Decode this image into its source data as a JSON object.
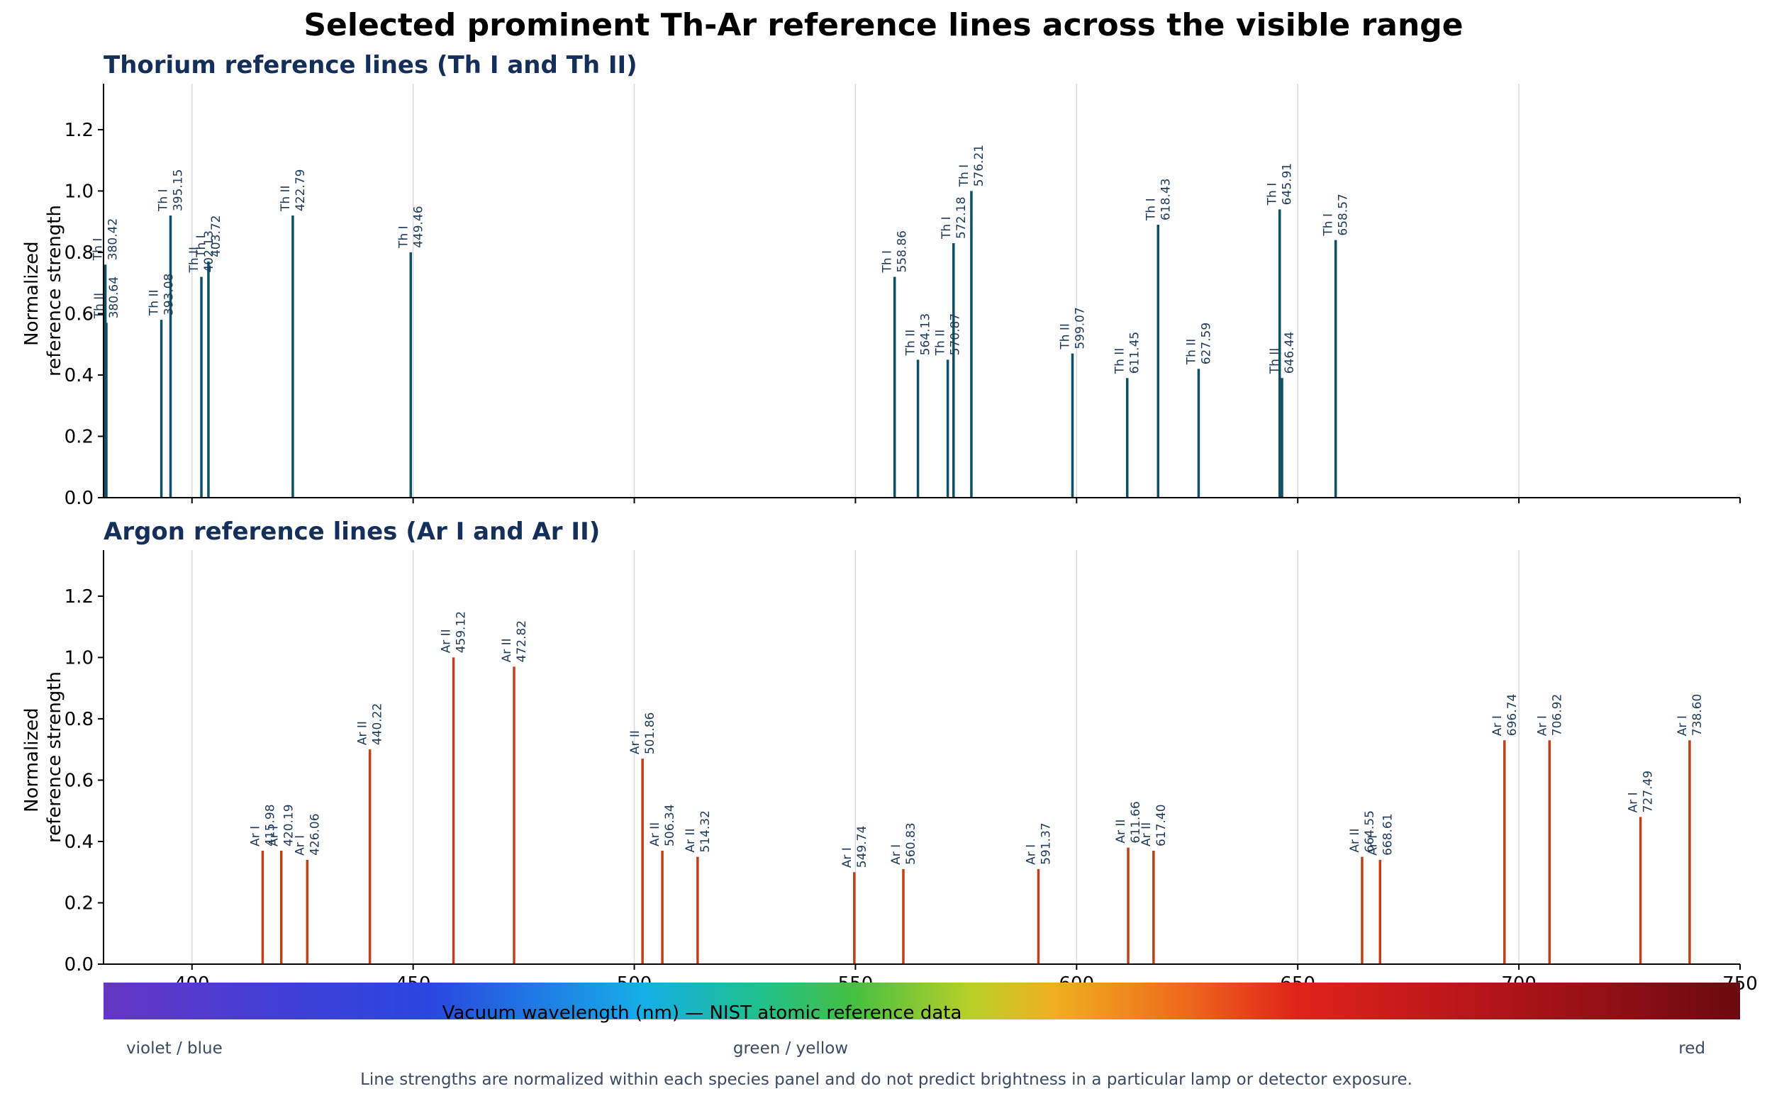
{
  "title": "Selected prominent Th-Ar reference lines across the visible range",
  "colors": {
    "thorium": "#0f5068",
    "argon": "#c0401a",
    "panel_title": "#14305a",
    "line_label": "#1e3a5a",
    "grid": "#d5d9e2",
    "footer_text": "#3b4a63"
  },
  "chart_data": [
    {
      "type": "bar",
      "title": "Thorium reference lines (Th I and Th II)",
      "ylabel": "Normalized\nreference strength",
      "ylim": [
        0,
        1.35
      ],
      "xlim": [
        380,
        750
      ],
      "yticks": [
        "0.0",
        "0.2",
        "0.4",
        "0.6",
        "0.8",
        "1.0",
        "1.2"
      ],
      "grid": "vertical",
      "lines": [
        {
          "ion": "Th I",
          "wavelength": 380.42,
          "label": "380.42",
          "strength": 0.76
        },
        {
          "ion": "Th II",
          "wavelength": 380.64,
          "label": "380.64",
          "strength": 0.57
        },
        {
          "ion": "Th II",
          "wavelength": 393.08,
          "label": "393.08",
          "strength": 0.58
        },
        {
          "ion": "Th I",
          "wavelength": 395.15,
          "label": "395.15",
          "strength": 0.92
        },
        {
          "ion": "Th II",
          "wavelength": 402.13,
          "label": "402.13",
          "strength": 0.72
        },
        {
          "ion": "Th I",
          "wavelength": 403.72,
          "label": "403.72",
          "strength": 0.77
        },
        {
          "ion": "Th II",
          "wavelength": 422.79,
          "label": "422.79",
          "strength": 0.92
        },
        {
          "ion": "Th I",
          "wavelength": 449.46,
          "label": "449.46",
          "strength": 0.8
        },
        {
          "ion": "Th I",
          "wavelength": 558.86,
          "label": "558.86",
          "strength": 0.72
        },
        {
          "ion": "Th II",
          "wavelength": 564.13,
          "label": "564.13",
          "strength": 0.45
        },
        {
          "ion": "Th II",
          "wavelength": 570.87,
          "label": "570.87",
          "strength": 0.45
        },
        {
          "ion": "Th I",
          "wavelength": 572.18,
          "label": "572.18",
          "strength": 0.83
        },
        {
          "ion": "Th I",
          "wavelength": 576.21,
          "label": "576.21",
          "strength": 1.0
        },
        {
          "ion": "Th II",
          "wavelength": 599.07,
          "label": "599.07",
          "strength": 0.47
        },
        {
          "ion": "Th II",
          "wavelength": 611.45,
          "label": "611.45",
          "strength": 0.39
        },
        {
          "ion": "Th I",
          "wavelength": 618.43,
          "label": "618.43",
          "strength": 0.89
        },
        {
          "ion": "Th II",
          "wavelength": 627.59,
          "label": "627.59",
          "strength": 0.42
        },
        {
          "ion": "Th I",
          "wavelength": 645.91,
          "label": "645.91",
          "strength": 0.94
        },
        {
          "ion": "Th II",
          "wavelength": 646.44,
          "label": "646.44",
          "strength": 0.39
        },
        {
          "ion": "Th I",
          "wavelength": 658.57,
          "label": "658.57",
          "strength": 0.84
        }
      ]
    },
    {
      "type": "bar",
      "title": "Argon reference lines (Ar I and Ar II)",
      "ylabel": "Normalized\nreference strength",
      "xlabel": "Vacuum wavelength (nm) — NIST atomic reference data",
      "ylim": [
        0,
        1.35
      ],
      "xlim": [
        380,
        750
      ],
      "xticks": [
        "400",
        "450",
        "500",
        "550",
        "600",
        "650",
        "700",
        "750"
      ],
      "yticks": [
        "0.0",
        "0.2",
        "0.4",
        "0.6",
        "0.8",
        "1.0",
        "1.2"
      ],
      "grid": "vertical",
      "lines": [
        {
          "ion": "Ar I",
          "wavelength": 415.98,
          "label": "415.98",
          "strength": 0.37
        },
        {
          "ion": "Ar I",
          "wavelength": 420.19,
          "label": "420.19",
          "strength": 0.37
        },
        {
          "ion": "Ar I",
          "wavelength": 426.06,
          "label": "426.06",
          "strength": 0.34
        },
        {
          "ion": "Ar II",
          "wavelength": 440.22,
          "label": "440.22",
          "strength": 0.7
        },
        {
          "ion": "Ar II",
          "wavelength": 459.12,
          "label": "459.12",
          "strength": 1.0
        },
        {
          "ion": "Ar II",
          "wavelength": 472.82,
          "label": "472.82",
          "strength": 0.97
        },
        {
          "ion": "Ar II",
          "wavelength": 501.86,
          "label": "501.86",
          "strength": 0.67
        },
        {
          "ion": "Ar II",
          "wavelength": 506.34,
          "label": "506.34",
          "strength": 0.37
        },
        {
          "ion": "Ar II",
          "wavelength": 514.32,
          "label": "514.32",
          "strength": 0.35
        },
        {
          "ion": "Ar I",
          "wavelength": 549.74,
          "label": "549.74",
          "strength": 0.3
        },
        {
          "ion": "Ar I",
          "wavelength": 560.83,
          "label": "560.83",
          "strength": 0.31
        },
        {
          "ion": "Ar I",
          "wavelength": 591.37,
          "label": "591.37",
          "strength": 0.31
        },
        {
          "ion": "Ar II",
          "wavelength": 611.66,
          "label": "611.66",
          "strength": 0.38
        },
        {
          "ion": "Ar II",
          "wavelength": 617.4,
          "label": "617.40",
          "strength": 0.37
        },
        {
          "ion": "Ar II",
          "wavelength": 664.55,
          "label": "664.55",
          "strength": 0.35
        },
        {
          "ion": "Ar I",
          "wavelength": 668.61,
          "label": "668.61",
          "strength": 0.34
        },
        {
          "ion": "Ar I",
          "wavelength": 696.74,
          "label": "696.74",
          "strength": 0.73
        },
        {
          "ion": "Ar I",
          "wavelength": 706.92,
          "label": "706.92",
          "strength": 0.73
        },
        {
          "ion": "Ar I",
          "wavelength": 727.49,
          "label": "727.49",
          "strength": 0.48
        },
        {
          "ion": "Ar I",
          "wavelength": 738.6,
          "label": "738.60",
          "strength": 0.73
        }
      ]
    }
  ],
  "spectrum_labels": [
    "violet / blue",
    "green / yellow",
    "red"
  ],
  "footnote": "Line strengths are normalized within each species panel and do not predict brightness in a particular lamp or detector exposure."
}
